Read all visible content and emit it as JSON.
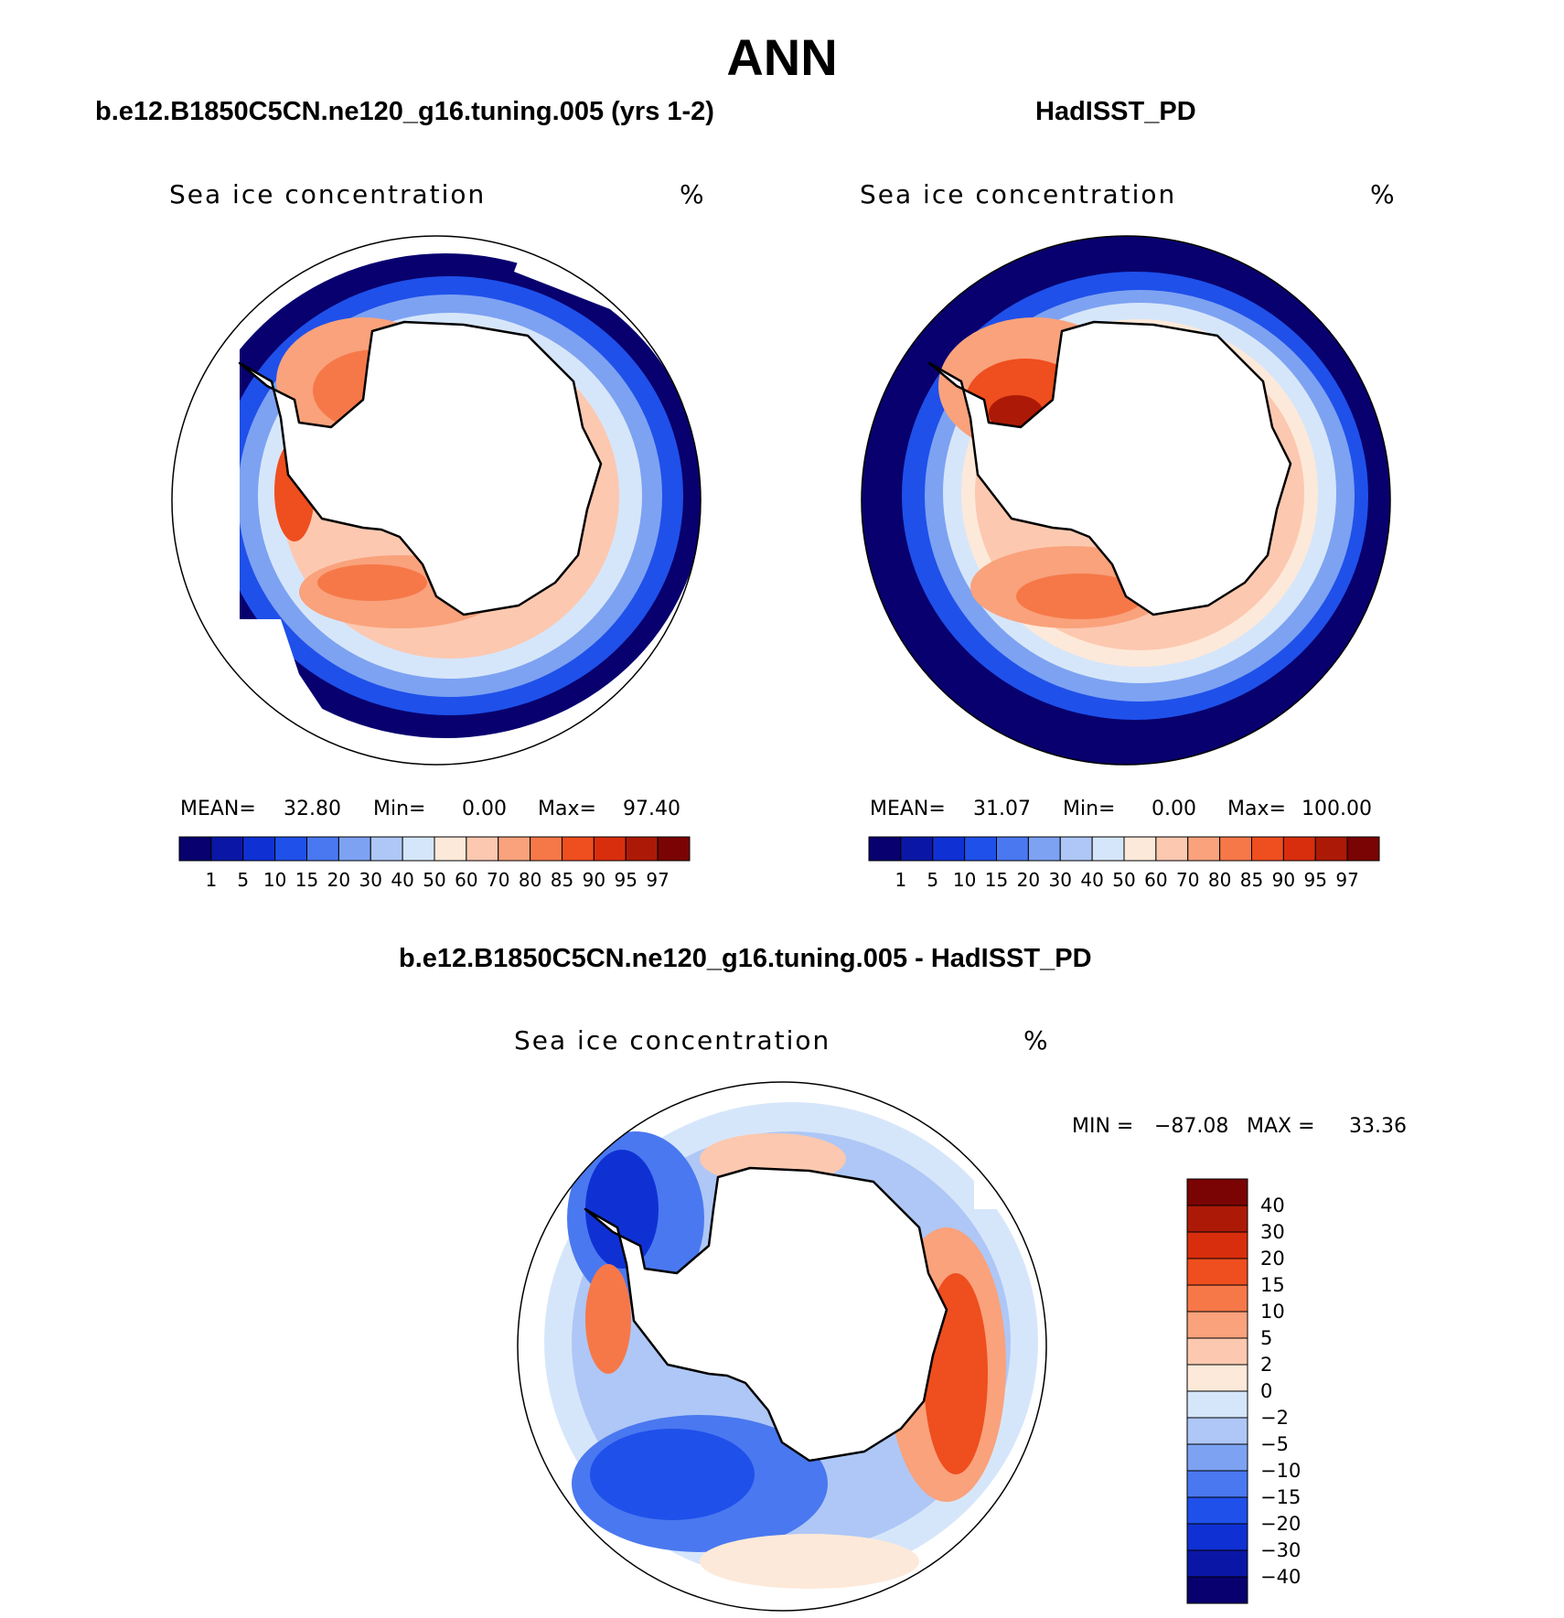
{
  "figure": {
    "title": "ANN"
  },
  "panels": [
    {
      "title": "b.e12.B1850C5CN.ne120_g16.tuning.005 (yrs 1-2)",
      "variable": "Sea ice concentration",
      "units": "%",
      "stats": {
        "mean_label": "MEAN=",
        "mean": "32.80",
        "min_label": "Min=",
        "min": "0.00",
        "max_label": "Max=",
        "max": "97.40"
      }
    },
    {
      "title": "HadISST_PD",
      "variable": "Sea ice concentration",
      "units": "%",
      "stats": {
        "mean_label": "MEAN=",
        "mean": "31.07",
        "min_label": "Min=",
        "min": "0.00",
        "max_label": "Max=",
        "max": "100.00"
      }
    },
    {
      "title": "b.e12.B1850C5CN.ne120_g16.tuning.005 - HadISST_PD",
      "variable": "Sea ice concentration",
      "units": "%",
      "stats": {
        "min_label": "MIN =",
        "min": "−87.08",
        "max_label": "MAX =",
        "max": "33.36"
      }
    }
  ],
  "colorbar_abs": {
    "levels": [
      "1",
      "5",
      "10",
      "15",
      "20",
      "30",
      "40",
      "50",
      "60",
      "70",
      "80",
      "85",
      "90",
      "95",
      "97"
    ],
    "colors": [
      "#08006e",
      "#0a17a6",
      "#0f31d4",
      "#1f50ea",
      "#4a78f0",
      "#7da2f2",
      "#aec7f6",
      "#d6e6fa",
      "#fde9d9",
      "#fcc8b0",
      "#f9a27c",
      "#f67849",
      "#ef4e1f",
      "#d92e0d",
      "#ac1a07",
      "#7a0403"
    ]
  },
  "colorbar_diff": {
    "levels": [
      "40",
      "30",
      "20",
      "15",
      "10",
      "5",
      "2",
      "0",
      "−2",
      "−5",
      "−10",
      "−15",
      "−20",
      "−30",
      "−40"
    ],
    "colors": [
      "#7a0403",
      "#ac1a07",
      "#d92e0d",
      "#ef4e1f",
      "#f67849",
      "#f9a27c",
      "#fcc8b0",
      "#fde9d9",
      "#d6e6fa",
      "#aec7f6",
      "#7da2f2",
      "#4a78f0",
      "#1f50ea",
      "#0f31d4",
      "#0a17a6",
      "#08006e"
    ]
  }
}
